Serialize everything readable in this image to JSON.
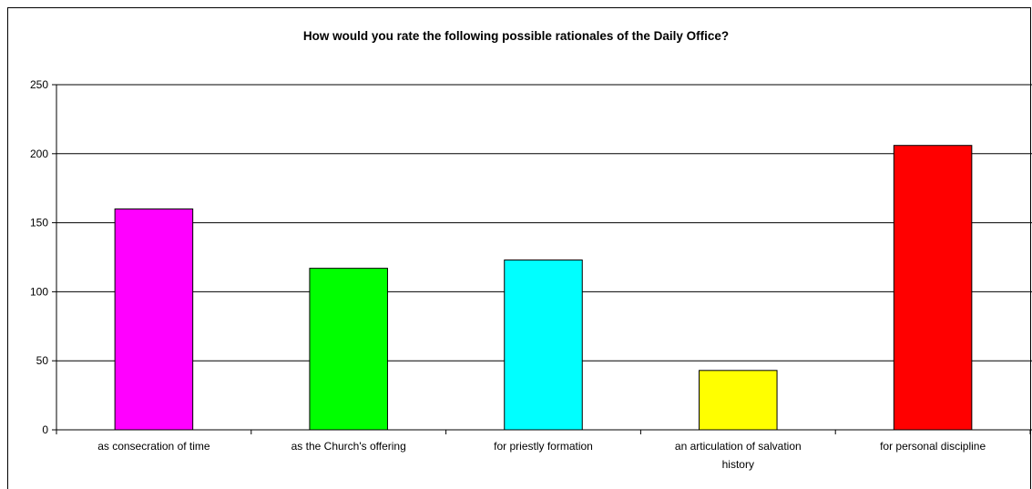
{
  "chart_data": {
    "type": "bar",
    "title": "How would you rate the following possible rationales of the Daily Office?",
    "xlabel": "",
    "ylabel": "",
    "categories": [
      [
        "as consecration of time"
      ],
      [
        "as the Church's offering"
      ],
      [
        "for priestly formation"
      ],
      [
        "an articulation of salvation",
        "history"
      ],
      [
        "for personal discipline"
      ]
    ],
    "values": [
      160,
      117,
      123,
      43,
      206
    ],
    "colors": [
      "#FF00FF",
      "#00FF00",
      "#00FFFF",
      "#FFFF00",
      "#FF0000"
    ],
    "ylim": [
      0,
      250
    ],
    "yticks": [
      "0",
      "50",
      "100",
      "150",
      "200",
      "250"
    ],
    "grid": true,
    "legend": "none"
  }
}
